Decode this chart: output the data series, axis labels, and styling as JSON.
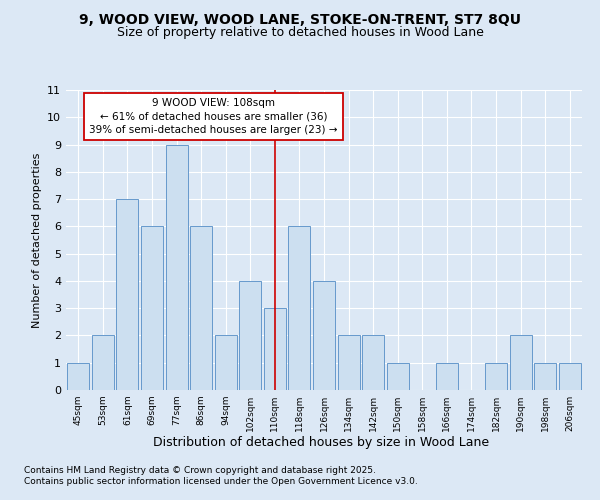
{
  "title": "9, WOOD VIEW, WOOD LANE, STOKE-ON-TRENT, ST7 8QU",
  "subtitle": "Size of property relative to detached houses in Wood Lane",
  "xlabel": "Distribution of detached houses by size in Wood Lane",
  "ylabel": "Number of detached properties",
  "categories": [
    "45sqm",
    "53sqm",
    "61sqm",
    "69sqm",
    "77sqm",
    "86sqm",
    "94sqm",
    "102sqm",
    "110sqm",
    "118sqm",
    "126sqm",
    "134sqm",
    "142sqm",
    "150sqm",
    "158sqm",
    "166sqm",
    "174sqm",
    "182sqm",
    "190sqm",
    "198sqm",
    "206sqm"
  ],
  "values": [
    1,
    2,
    7,
    6,
    9,
    6,
    2,
    4,
    3,
    6,
    4,
    2,
    2,
    1,
    0,
    1,
    0,
    1,
    2,
    1,
    1
  ],
  "bar_color": "#ccdff0",
  "bar_edgecolor": "#6699cc",
  "highlight_index": 8,
  "highlight_color": "#cc0000",
  "ylim": [
    0,
    11
  ],
  "yticks": [
    0,
    1,
    2,
    3,
    4,
    5,
    6,
    7,
    8,
    9,
    10,
    11
  ],
  "annotation_text": "9 WOOD VIEW: 108sqm\n← 61% of detached houses are smaller (36)\n39% of semi-detached houses are larger (23) →",
  "annotation_box_facecolor": "#ffffff",
  "annotation_box_edgecolor": "#cc0000",
  "footer_line1": "Contains HM Land Registry data © Crown copyright and database right 2025.",
  "footer_line2": "Contains public sector information licensed under the Open Government Licence v3.0.",
  "background_color": "#dce8f5",
  "title_fontsize": 10,
  "subtitle_fontsize": 9,
  "annotation_fontsize": 7.5,
  "footer_fontsize": 6.5,
  "ylabel_fontsize": 8,
  "xlabel_fontsize": 9
}
